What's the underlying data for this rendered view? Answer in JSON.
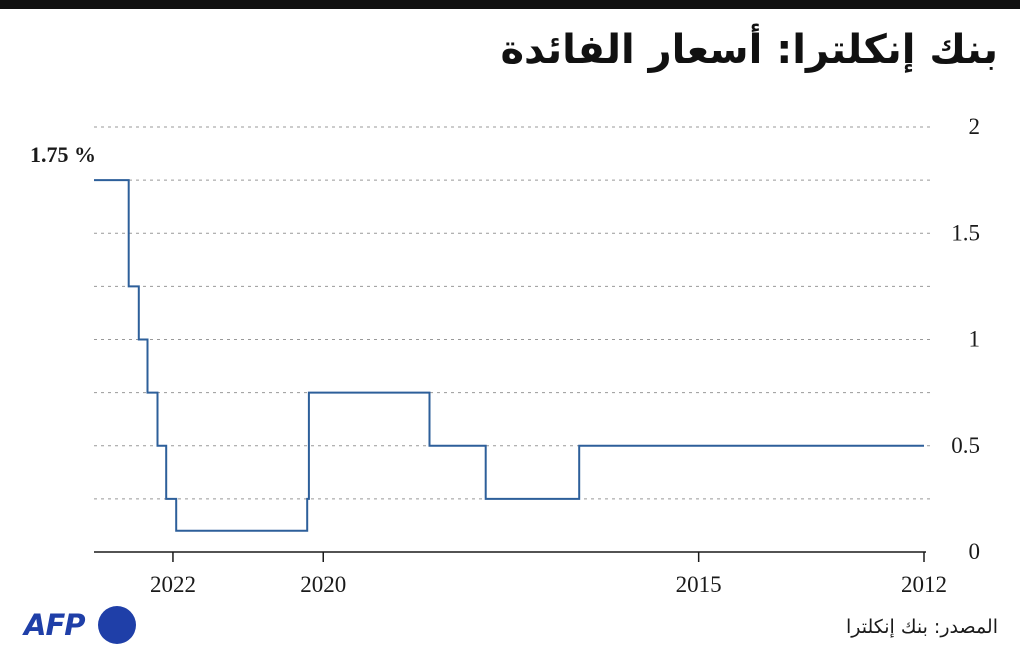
{
  "header": {
    "title": "بنك إنكلترا: أسعار الفائدة"
  },
  "footer": {
    "source": "المصدر: بنك إنكلترا",
    "logo_text": "AFP"
  },
  "colors": {
    "line": "#2d5f9a",
    "grid": "#999999",
    "axis": "#1a1a1a",
    "logo": "#1f3fa8"
  },
  "chart_data": {
    "type": "line",
    "title": "بنك إنكلترا: أسعار الفائدة",
    "x_direction": "right-to-left",
    "x_range": [
      "2012-01-01",
      "2023-01-20"
    ],
    "ylim": [
      0,
      2
    ],
    "y_ticks": [
      {
        "value": 0,
        "label": "0"
      },
      {
        "value": 0.5,
        "label": "0.5"
      },
      {
        "value": 1,
        "label": "1"
      },
      {
        "value": 1.5,
        "label": "1.5"
      },
      {
        "value": 2,
        "label": "2"
      }
    ],
    "x_ticks": [
      {
        "date": "2012-01-01",
        "label": "2012"
      },
      {
        "date": "2015-01-01",
        "label": "2015"
      },
      {
        "date": "2020-01-01",
        "label": "2020"
      },
      {
        "date": "2022-01-01",
        "label": "2022"
      }
    ],
    "last_value_label": "1.75 %",
    "grid": true,
    "series": [
      {
        "step": true,
        "points": [
          {
            "date": "2012-01-01",
            "value": 0.5
          },
          {
            "date": "2016-08-04",
            "value": 0.25
          },
          {
            "date": "2017-11-02",
            "value": 0.5
          },
          {
            "date": "2018-08-02",
            "value": 0.75
          },
          {
            "date": "2020-03-11",
            "value": 0.25
          },
          {
            "date": "2020-03-19",
            "value": 0.1
          },
          {
            "date": "2021-12-16",
            "value": 0.25
          },
          {
            "date": "2022-02-03",
            "value": 0.5
          },
          {
            "date": "2022-03-17",
            "value": 0.75
          },
          {
            "date": "2022-05-05",
            "value": 1.0
          },
          {
            "date": "2022-06-16",
            "value": 1.25
          },
          {
            "date": "2022-08-04",
            "value": 1.75
          },
          {
            "date": "2023-01-20",
            "value": 1.75
          }
        ]
      }
    ]
  }
}
